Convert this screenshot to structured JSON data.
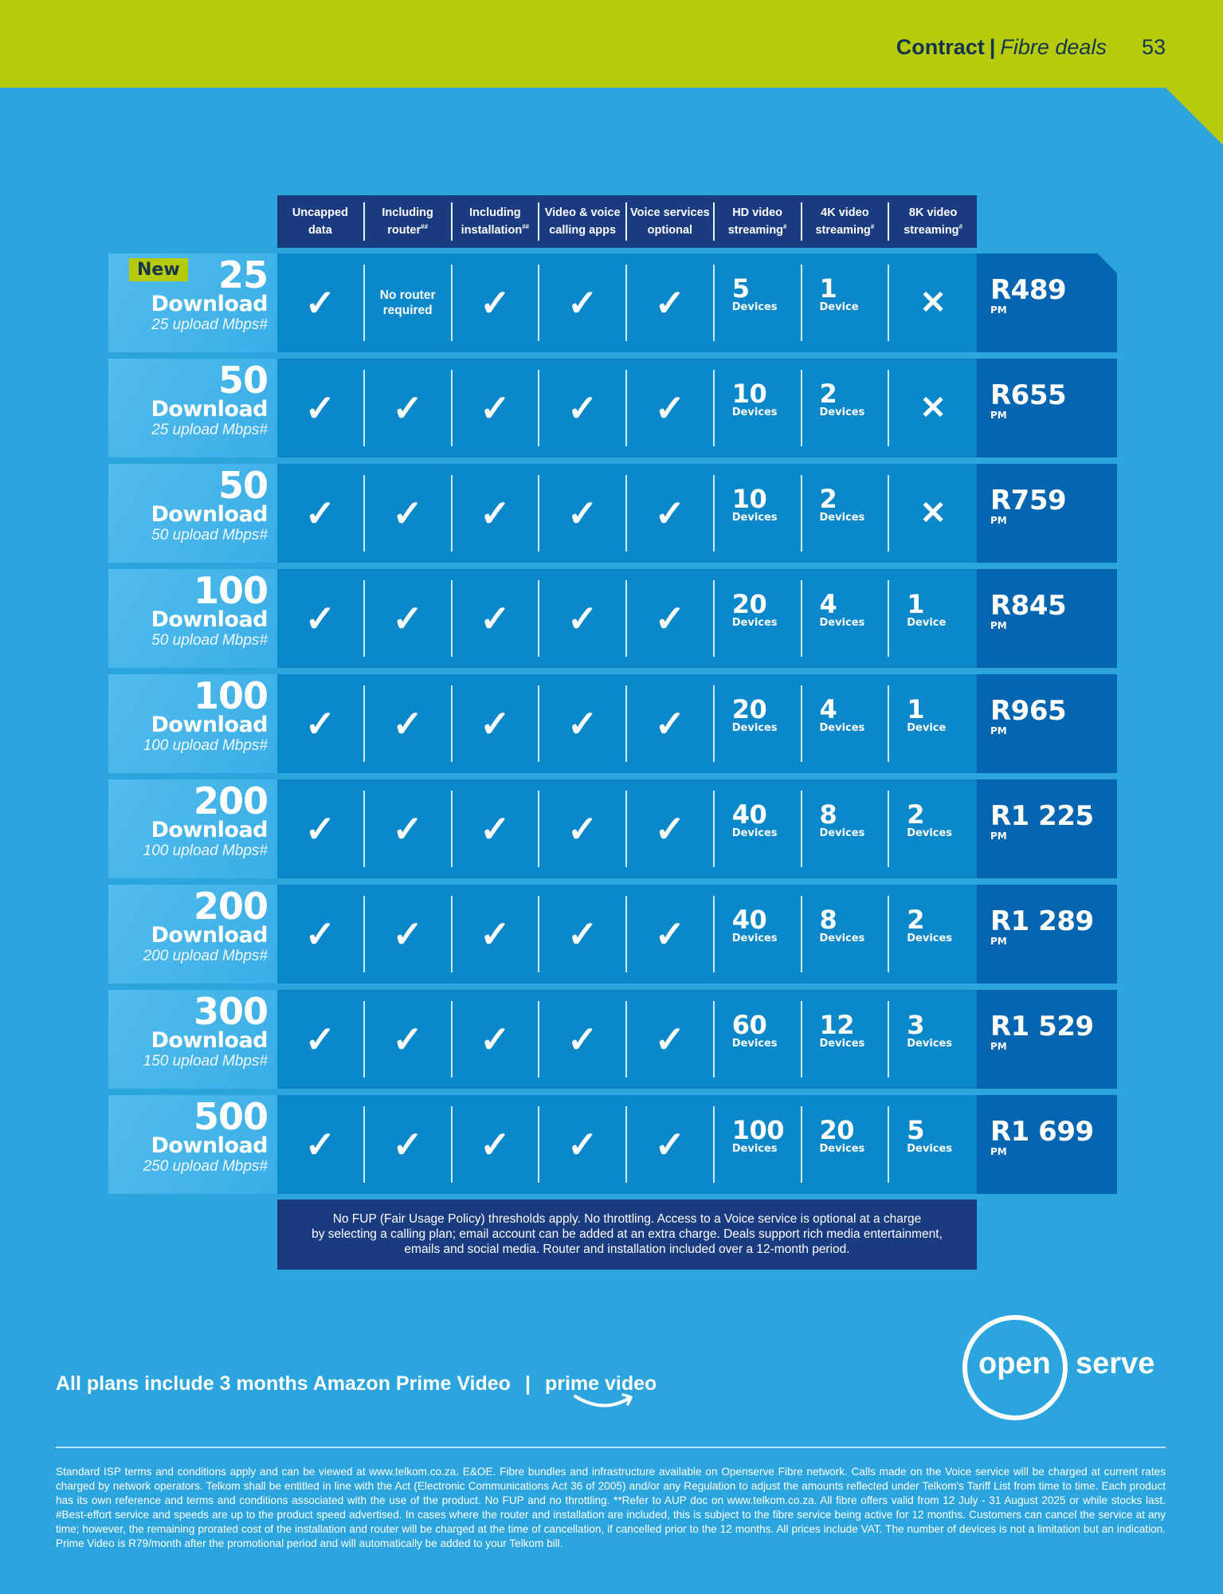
{
  "header": {
    "section": "Contract",
    "separator": "|",
    "subsection": "Fibre deals",
    "page_number": "53"
  },
  "columns": [
    {
      "line1": "Uncapped",
      "line2": "data",
      "mark": ""
    },
    {
      "line1": "Including",
      "line2": "router",
      "mark": "##"
    },
    {
      "line1": "Including",
      "line2": "installation",
      "mark": "##"
    },
    {
      "line1": "Video & voice",
      "line2": "calling apps",
      "mark": ""
    },
    {
      "line1": "Voice services",
      "line2": "optional",
      "mark": ""
    },
    {
      "line1": "HD video",
      "line2": "streaming",
      "mark": "#"
    },
    {
      "line1": "4K video",
      "line2": "streaming",
      "mark": "#"
    },
    {
      "line1": "8K video",
      "line2": "streaming",
      "mark": "#"
    }
  ],
  "symbols": {
    "check": "✓",
    "cross": "✕"
  },
  "badge_new": "New",
  "plans": [
    {
      "download": "25",
      "download_label": "Download",
      "upload": "25 upload Mbps#",
      "new": true,
      "uncapped": "✓",
      "router": "No router required",
      "router_l1": "No router",
      "router_l2": "required",
      "installation": "✓",
      "apps": "✓",
      "voice": "✓",
      "hd": {
        "n": "5",
        "l": "Devices"
      },
      "k4": {
        "n": "1",
        "l": "Device"
      },
      "k8": {
        "n": "",
        "l": "",
        "none": true
      },
      "price": "R489",
      "period": "PM"
    },
    {
      "download": "50",
      "download_label": "Download",
      "upload": "25 upload Mbps#",
      "uncapped": "✓",
      "router": "✓",
      "installation": "✓",
      "apps": "✓",
      "voice": "✓",
      "hd": {
        "n": "10",
        "l": "Devices"
      },
      "k4": {
        "n": "2",
        "l": "Devices"
      },
      "k8": {
        "n": "",
        "l": "",
        "none": true
      },
      "price": "R655",
      "period": "PM"
    },
    {
      "download": "50",
      "download_label": "Download",
      "upload": "50 upload Mbps#",
      "uncapped": "✓",
      "router": "✓",
      "installation": "✓",
      "apps": "✓",
      "voice": "✓",
      "hd": {
        "n": "10",
        "l": "Devices"
      },
      "k4": {
        "n": "2",
        "l": "Devices"
      },
      "k8": {
        "n": "",
        "l": "",
        "none": true
      },
      "price": "R759",
      "period": "PM"
    },
    {
      "download": "100",
      "download_label": "Download",
      "upload": "50 upload Mbps#",
      "uncapped": "✓",
      "router": "✓",
      "installation": "✓",
      "apps": "✓",
      "voice": "✓",
      "hd": {
        "n": "20",
        "l": "Devices"
      },
      "k4": {
        "n": "4",
        "l": "Devices"
      },
      "k8": {
        "n": "1",
        "l": "Device"
      },
      "price": "R845",
      "period": "PM"
    },
    {
      "download": "100",
      "download_label": "Download",
      "upload": "100 upload Mbps#",
      "uncapped": "✓",
      "router": "✓",
      "installation": "✓",
      "apps": "✓",
      "voice": "✓",
      "hd": {
        "n": "20",
        "l": "Devices"
      },
      "k4": {
        "n": "4",
        "l": "Devices"
      },
      "k8": {
        "n": "1",
        "l": "Device"
      },
      "price": "R965",
      "period": "PM"
    },
    {
      "download": "200",
      "download_label": "Download",
      "upload": "100 upload Mbps#",
      "uncapped": "✓",
      "router": "✓",
      "installation": "✓",
      "apps": "✓",
      "voice": "✓",
      "hd": {
        "n": "40",
        "l": "Devices"
      },
      "k4": {
        "n": "8",
        "l": "Devices"
      },
      "k8": {
        "n": "2",
        "l": "Devices"
      },
      "price": "R1 225",
      "period": "PM"
    },
    {
      "download": "200",
      "download_label": "Download",
      "upload": "200 upload Mbps#",
      "uncapped": "✓",
      "router": "✓",
      "installation": "✓",
      "apps": "✓",
      "voice": "✓",
      "hd": {
        "n": "40",
        "l": "Devices"
      },
      "k4": {
        "n": "8",
        "l": "Devices"
      },
      "k8": {
        "n": "2",
        "l": "Devices"
      },
      "price": "R1 289",
      "period": "PM"
    },
    {
      "download": "300",
      "download_label": "Download",
      "upload": "150 upload Mbps#",
      "uncapped": "✓",
      "router": "✓",
      "installation": "✓",
      "apps": "✓",
      "voice": "✓",
      "hd": {
        "n": "60",
        "l": "Devices"
      },
      "k4": {
        "n": "12",
        "l": "Devices"
      },
      "k8": {
        "n": "3",
        "l": "Devices"
      },
      "price": "R1 529",
      "period": "PM"
    },
    {
      "download": "500",
      "download_label": "Download",
      "upload": "250 upload Mbps#",
      "uncapped": "✓",
      "router": "✓",
      "installation": "✓",
      "apps": "✓",
      "voice": "✓",
      "hd": {
        "n": "100",
        "l": "Devices"
      },
      "k4": {
        "n": "20",
        "l": "Devices"
      },
      "k8": {
        "n": "5",
        "l": "Devices"
      },
      "price": "R1 699",
      "period": "PM"
    }
  ],
  "note": {
    "line1": "No FUP (Fair Usage Policy) thresholds apply. No throttling. Access to a Voice service is optional at a charge",
    "line2": "by selecting a calling plan; email account can be added at an extra charge. Deals support rich media entertainment,",
    "line3": "emails and social media. Router and installation included over a 12-month period."
  },
  "promo": {
    "text": "All plans include 3 months Amazon Prime Video",
    "separator": "|",
    "logo_text": "prime video"
  },
  "openserve": {
    "part1": "open",
    "part2": "serve"
  },
  "fine_print": "Standard ISP terms and conditions apply and can be viewed at www.telkom.co.za. E&OE. Fibre bundles and infrastructure available on Openserve Fibre network. Calls made on the Voice service will be charged at current rates charged by network operators. Telkom shall be entitled in line with the Act (Electronic Communications Act 36 of 2005) and/or any Regulation to adjust the amounts reflected under Telkom's Tariff List from time to time. Each product has its own reference and terms and conditions associated with the use of the product. No FUP and no throttling. **Refer to AUP doc on www.telkom.co.za. All fibre offers valid from 12 July - 31 August 2025 or while stocks last. #Best-effort service and speeds are up to the product speed advertised. In cases where the router and installation are included, this is subject to the fibre service being active for 12 months. Customers can cancel the service at any time; however, the remaining prorated cost of the installation and router will be charged at the time of cancellation, if cancelled prior to the 12 months. All prices include VAT. The number of devices is not a limitation but an indication. Prime Video is R79/month after the promotional period and will automatically be added to your Telkom bill.",
  "colors": {
    "lime": "#b5cb0b",
    "background_blue": "#2ca5df",
    "navy": "#1b3b80",
    "cell_blue": "#0b88ca",
    "price_blue": "#0565b1",
    "header_text": "#16354a"
  }
}
